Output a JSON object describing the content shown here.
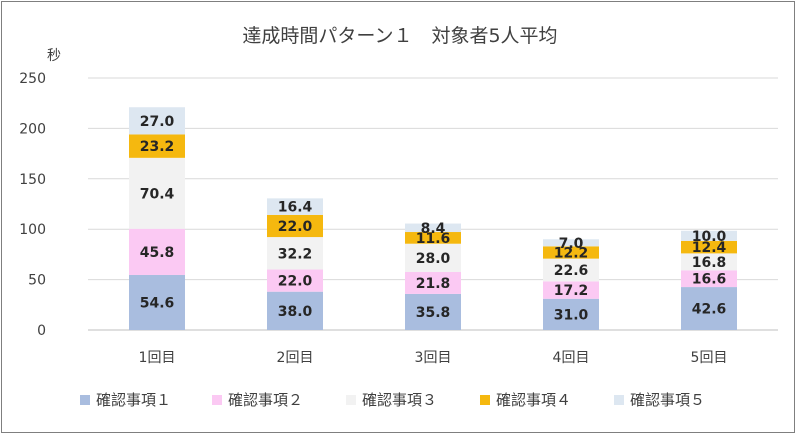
{
  "chart_data": {
    "type": "bar",
    "stacked": true,
    "title": "達成時間パターン１　対象者5人平均",
    "ylabel": "秒",
    "xlabel": "",
    "ylim": [
      0,
      250
    ],
    "yticks": [
      "0",
      "50",
      "100",
      "150",
      "200",
      "250"
    ],
    "grid": true,
    "legend_position": "bottom",
    "categories": [
      "1回目",
      "2回目",
      "3回目",
      "4回目",
      "5回目"
    ],
    "series": [
      {
        "name": "確認事項１",
        "color": "#a9bddf",
        "values": [
          54.6,
          38.0,
          35.8,
          31.0,
          42.6
        ],
        "labels": [
          "54.6",
          "38.0",
          "35.8",
          "31.0",
          "42.6"
        ]
      },
      {
        "name": "確認事項２",
        "color": "#fbc9f3",
        "values": [
          45.8,
          22.0,
          21.8,
          17.2,
          16.6
        ],
        "labels": [
          "45.8",
          "22.0",
          "21.8",
          "17.2",
          "16.6"
        ]
      },
      {
        "name": "確認事項３",
        "color": "#f2f2f2",
        "values": [
          70.4,
          32.2,
          28.0,
          22.6,
          16.8
        ],
        "labels": [
          "70.4",
          "32.2",
          "28.0",
          "22.6",
          "16.8"
        ]
      },
      {
        "name": "確認事項４",
        "color": "#f5b80f",
        "values": [
          23.2,
          22.0,
          11.6,
          12.2,
          12.4
        ],
        "labels": [
          "23.2",
          "22.0",
          "11.6",
          "12.2",
          "12.4"
        ]
      },
      {
        "name": "確認事項５",
        "color": "#dde7f1",
        "values": [
          27.0,
          16.4,
          8.4,
          7.0,
          10.0
        ],
        "labels": [
          "27.0",
          "16.4",
          "8.4",
          "7.0",
          "10.0"
        ]
      }
    ]
  }
}
